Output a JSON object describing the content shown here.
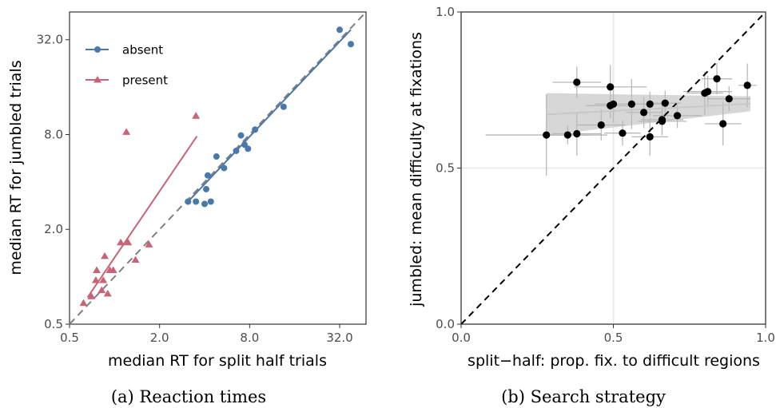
{
  "chart_data": [
    {
      "type": "scatter",
      "caption": "(a) Reaction times",
      "xlabel": "median RT for split half trials",
      "ylabel": "median RT for jumbled trials",
      "scale": "log2",
      "xlim": [
        0.5,
        48
      ],
      "ylim": [
        0.5,
        48
      ],
      "xticks": [
        0.5,
        2.0,
        8.0,
        32.0
      ],
      "yticks": [
        0.5,
        2.0,
        8.0,
        32.0
      ],
      "xtick_labels": [
        "0.5",
        "2.0",
        "8.0",
        "32.0"
      ],
      "ytick_labels": [
        "0.5",
        "2.0",
        "8.0",
        "32.0"
      ],
      "grid": false,
      "legend_position": "top-left",
      "identity_line": true,
      "series": [
        {
          "name": "absent",
          "color": "#4a78a8",
          "marker": "circle",
          "x": [
            3.1,
            3.5,
            4.0,
            4.1,
            4.2,
            4.4,
            4.8,
            5.4,
            6.5,
            7.0,
            7.4,
            7.8,
            8.7,
            13.5,
            32,
            38
          ],
          "y": [
            3.0,
            3.0,
            2.9,
            3.6,
            4.4,
            3.0,
            5.8,
            4.9,
            6.3,
            7.9,
            6.9,
            6.5,
            8.6,
            12.0,
            37,
            30
          ],
          "fit_line": {
            "x": [
              3.1,
              38
            ],
            "y": [
              3.0,
              37
            ]
          }
        },
        {
          "name": "present",
          "color": "#c86478",
          "marker": "triangle",
          "x": [
            0.62,
            0.7,
            0.75,
            0.76,
            0.82,
            0.84,
            0.86,
            0.9,
            0.93,
            0.98,
            1.1,
            1.2,
            1.23,
            1.38,
            1.7,
            3.5
          ],
          "y": [
            0.68,
            0.75,
            0.95,
            1.1,
            0.82,
            0.95,
            1.35,
            0.78,
            1.1,
            1.1,
            1.65,
            8.3,
            1.65,
            1.28,
            1.6,
            10.5
          ],
          "fit_line": {
            "x": [
              0.66,
              3.55
            ],
            "y": [
              0.74,
              7.8
            ]
          }
        }
      ]
    },
    {
      "type": "scatter",
      "caption": "(b) Search strategy",
      "xlabel": "split−half: prop. fix. to difficult regions",
      "ylabel": "jumbled: mean difficulty at fixations",
      "xlim": [
        0.0,
        1.0
      ],
      "ylim": [
        0.0,
        1.0
      ],
      "xtick_labels": [
        "0.0",
        "0.5",
        "1.0"
      ],
      "ytick_labels": [
        "0.0",
        "0.5",
        "1.0"
      ],
      "grid": true,
      "identity_line": true,
      "points": [
        {
          "x": 0.28,
          "y": 0.606,
          "xerr": 0.2,
          "yerr": 0.13
        },
        {
          "x": 0.35,
          "y": 0.606,
          "xerr": 0.08,
          "yerr": 0.03
        },
        {
          "x": 0.38,
          "y": 0.775,
          "xerr": 0.08,
          "yerr": 0.05
        },
        {
          "x": 0.38,
          "y": 0.61,
          "xerr": 0.08,
          "yerr": 0.07
        },
        {
          "x": 0.46,
          "y": 0.638,
          "xerr": 0.08,
          "yerr": 0.05
        },
        {
          "x": 0.49,
          "y": 0.76,
          "xerr": 0.12,
          "yerr": 0.07
        },
        {
          "x": 0.49,
          "y": 0.7,
          "xerr": 0.08,
          "yerr": 0.04
        },
        {
          "x": 0.5,
          "y": 0.705,
          "xerr": 0.06,
          "yerr": 0.06
        },
        {
          "x": 0.53,
          "y": 0.612,
          "xerr": 0.06,
          "yerr": 0.04
        },
        {
          "x": 0.56,
          "y": 0.705,
          "xerr": 0.08,
          "yerr": 0.08
        },
        {
          "x": 0.6,
          "y": 0.678,
          "xerr": 0.06,
          "yerr": 0.05
        },
        {
          "x": 0.62,
          "y": 0.705,
          "xerr": 0.06,
          "yerr": 0.04
        },
        {
          "x": 0.62,
          "y": 0.6,
          "xerr": 0.06,
          "yerr": 0.06
        },
        {
          "x": 0.66,
          "y": 0.65,
          "xerr": 0.08,
          "yerr": 0.04
        },
        {
          "x": 0.66,
          "y": 0.655,
          "xerr": 0.07,
          "yerr": 0.05
        },
        {
          "x": 0.67,
          "y": 0.708,
          "xerr": 0.05,
          "yerr": 0.04
        },
        {
          "x": 0.71,
          "y": 0.668,
          "xerr": 0.08,
          "yerr": 0.04
        },
        {
          "x": 0.8,
          "y": 0.74,
          "xerr": 0.06,
          "yerr": 0.07
        },
        {
          "x": 0.81,
          "y": 0.745,
          "xerr": 0.08,
          "yerr": 0.05
        },
        {
          "x": 0.84,
          "y": 0.786,
          "xerr": 0.05,
          "yerr": 0.05
        },
        {
          "x": 0.86,
          "y": 0.642,
          "xerr": 0.06,
          "yerr": 0.07
        },
        {
          "x": 0.88,
          "y": 0.722,
          "xerr": 0.07,
          "yerr": 0.04
        },
        {
          "x": 0.94,
          "y": 0.765,
          "xerr": 0.03,
          "yerr": 0.07
        }
      ],
      "fit_line": {
        "x": [
          0.28,
          0.95
        ],
        "y": [
          0.672,
          0.706
        ]
      },
      "confidence_band": {
        "x": [
          0.28,
          0.95
        ],
        "lower": [
          0.605,
          0.682
        ],
        "upper": [
          0.74,
          0.73
        ]
      }
    }
  ]
}
